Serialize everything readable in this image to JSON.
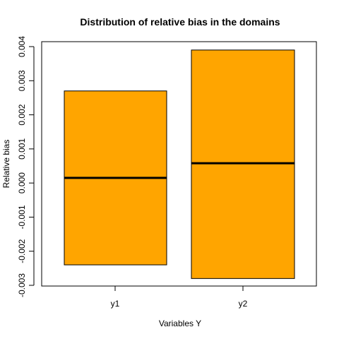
{
  "chart_data": {
    "type": "boxplot",
    "title": "Distribution of relative bias in the domains",
    "xlabel": "Variables Y",
    "ylabel": "Relative bias",
    "ylim": [
      -0.003,
      0.004
    ],
    "yticks": [
      "-0.003",
      "-0.002",
      "-0.001",
      "0.000",
      "0.001",
      "0.002",
      "0.003",
      "0.004"
    ],
    "box_color": "#FFA500",
    "categories": [
      "y1",
      "y2"
    ],
    "boxes": [
      {
        "name": "y1",
        "low": -0.0024,
        "median": 0.00015,
        "high": 0.0027
      },
      {
        "name": "y2",
        "low": -0.0028,
        "median": 0.00058,
        "high": 0.0039
      }
    ]
  }
}
